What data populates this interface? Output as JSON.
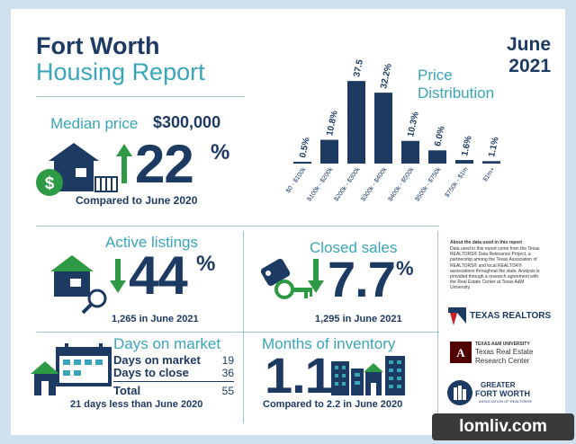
{
  "header": {
    "title_line1": "Fort Worth",
    "title_line2": "Housing Report",
    "month": "June",
    "year": "2021"
  },
  "median": {
    "label": "Median price",
    "price": "$300,000",
    "change": "22",
    "pct": "%",
    "compare": "Compared to June 2020"
  },
  "price_distribution": {
    "title_line1": "Price",
    "title_line2": "Distribution"
  },
  "chart_data": {
    "type": "bar",
    "title": "Price Distribution",
    "categories": [
      "$0 - $100k",
      "$100k - $200k",
      "$200k - $300k",
      "$300k - $400k",
      "$400k - $500k",
      "$500k - $750k",
      "$750k - $1m",
      "$1m+"
    ],
    "values": [
      0.5,
      10.8,
      37.5,
      32.2,
      10.3,
      6.0,
      1.6,
      1.1
    ],
    "value_labels": [
      "0.5",
      "10.8",
      "37.5",
      "32.2",
      "10.3",
      "6.0",
      "1.6",
      "1.1"
    ],
    "unit": "%",
    "ylim": [
      0,
      40
    ],
    "grid": false,
    "color": "#1d3a63"
  },
  "active": {
    "label": "Active listings",
    "value": "44",
    "pct": "%",
    "sub": "1,265 in June 2021"
  },
  "closed": {
    "label": "Closed sales",
    "value": "7.7",
    "pct": "%",
    "sub": "1,295 in June 2021"
  },
  "about": {
    "heading": "About the data used in this report",
    "text": "Data used in this report come from the Texas REALTORS® Data Relevance Project, a partnership among the Texas Association of REALTORS® and local REALTOR® associations throughout the state. Analysis is provided through a research agreement with the Real Estate Center at Texas A&M University."
  },
  "days": {
    "label": "Days on market",
    "rows": [
      {
        "label": "Days on market",
        "value": "19"
      },
      {
        "label": "Days to close",
        "value": "36"
      }
    ],
    "total_label": "Total",
    "total_value": "55",
    "footnote": "21 days less than June 2020"
  },
  "inventory": {
    "label": "Months of inventory",
    "value": "1.1",
    "compare": "Compared to 2.2 in June 2020"
  },
  "logos": {
    "texas_realtors": "TEXAS REALTORS",
    "tamu_top": "TEXAS A&M UNIVERSITY",
    "tamu_line1": "Texas Real Estate",
    "tamu_line2": "Research Center",
    "gfw_line1": "GREATER",
    "gfw_line2": "FORT WORTH",
    "gfw_line3": "ASSOCIATION OF REALTORS®"
  },
  "watermark": "lomliv.com",
  "colors": {
    "navy": "#1d3a63",
    "teal": "#3aa5b8",
    "green": "#2f9a46",
    "background": "#cfe0ee"
  },
  "icons": [
    "house-dollar-icon",
    "up-arrow-icon",
    "down-arrow-icon",
    "house-magnifier-icon",
    "key-tag-icon",
    "calendar-icon",
    "city-buildings-icon"
  ]
}
